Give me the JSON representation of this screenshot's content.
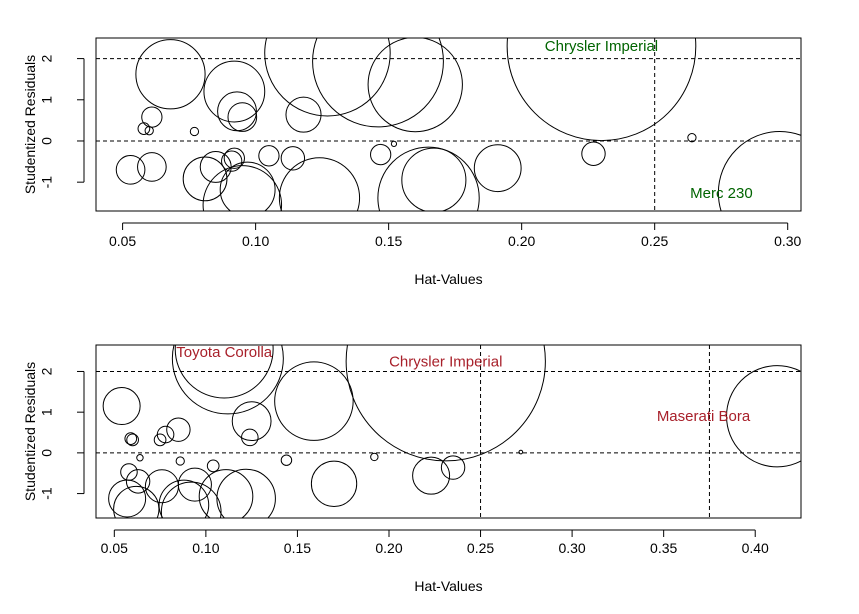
{
  "chart_data": [
    {
      "type": "scatter",
      "xlabel": "Hat-Values",
      "ylabel": "Studentized Residuals",
      "xlim": [
        0.04,
        0.305
      ],
      "ylim": [
        -1.7,
        2.5
      ],
      "xticks": [
        {
          "value": 0.05,
          "label": "0.05"
        },
        {
          "value": 0.1,
          "label": "0.10"
        },
        {
          "value": 0.15,
          "label": "0.15"
        },
        {
          "value": 0.2,
          "label": "0.20"
        },
        {
          "value": 0.25,
          "label": "0.25"
        },
        {
          "value": 0.3,
          "label": "0.30"
        }
      ],
      "yticks": [
        {
          "value": -1,
          "label": "-1"
        },
        {
          "value": 0,
          "label": "0"
        },
        {
          "value": 1,
          "label": "1"
        },
        {
          "value": 2,
          "label": "2"
        }
      ],
      "hlines": [
        -2,
        0,
        2
      ],
      "vlines": [
        0.25
      ],
      "bubble_note": "circle area proportional to Cook's distance",
      "points": [
        {
          "x": 0.053,
          "y": -0.7,
          "size": 0.006
        },
        {
          "x": 0.058,
          "y": 0.3,
          "size": 0.001
        },
        {
          "x": 0.06,
          "y": 0.25,
          "size": 0.0005
        },
        {
          "x": 0.061,
          "y": 0.58,
          "size": 0.003
        },
        {
          "x": 0.061,
          "y": -0.63,
          "size": 0.006
        },
        {
          "x": 0.068,
          "y": 1.62,
          "size": 0.035
        },
        {
          "x": 0.077,
          "y": 0.23,
          "size": 0.0005
        },
        {
          "x": 0.081,
          "y": -0.92,
          "size": 0.014
        },
        {
          "x": 0.085,
          "y": -0.63,
          "size": 0.007
        },
        {
          "x": 0.091,
          "y": -0.49,
          "size": 0.003
        },
        {
          "x": 0.092,
          "y": -0.42,
          "size": 0.003
        },
        {
          "x": 0.092,
          "y": 1.2,
          "size": 0.027
        },
        {
          "x": 0.093,
          "y": 0.72,
          "size": 0.011
        },
        {
          "x": 0.095,
          "y": 0.58,
          "size": 0.006
        },
        {
          "x": 0.095,
          "y": -1.55,
          "size": 0.045
        },
        {
          "x": 0.097,
          "y": -1.18,
          "size": 0.022
        },
        {
          "x": 0.105,
          "y": -0.36,
          "size": 0.003
        },
        {
          "x": 0.114,
          "y": -0.42,
          "size": 0.004
        },
        {
          "x": 0.118,
          "y": 0.64,
          "size": 0.009
        },
        {
          "x": 0.124,
          "y": -1.38,
          "size": 0.047
        },
        {
          "x": 0.127,
          "y": 2.13,
          "size": 0.115
        },
        {
          "x": 0.146,
          "y": 1.93,
          "size": 0.125
        },
        {
          "x": 0.147,
          "y": -0.33,
          "size": 0.003
        },
        {
          "x": 0.152,
          "y": -0.07,
          "size": 0.0002
        },
        {
          "x": 0.16,
          "y": 1.37,
          "size": 0.065
        },
        {
          "x": 0.165,
          "y": -1.38,
          "size": 0.075
        },
        {
          "x": 0.167,
          "y": -0.95,
          "size": 0.03
        },
        {
          "x": 0.191,
          "y": -0.66,
          "size": 0.016
        },
        {
          "x": 0.227,
          "y": -0.31,
          "size": 0.004
        },
        {
          "x": 0.23,
          "y": 2.3,
          "size": 0.26
        },
        {
          "x": 0.264,
          "y": 0.08,
          "size": 0.0005
        },
        {
          "x": 0.297,
          "y": -1.26,
          "size": 0.11
        }
      ],
      "annotations": [
        {
          "text": "Chrysler Imperial",
          "x": 0.23,
          "y": 2.3
        },
        {
          "text": "Merc 230",
          "x": 0.297,
          "y": -1.26
        }
      ],
      "label_color": "#006400"
    },
    {
      "type": "scatter",
      "xlabel": "Hat-Values",
      "ylabel": "Studentized Residuals",
      "xlim": [
        0.04,
        0.425
      ],
      "ylim": [
        -1.6,
        2.65
      ],
      "xticks": [
        {
          "value": 0.05,
          "label": "0.05"
        },
        {
          "value": 0.1,
          "label": "0.10"
        },
        {
          "value": 0.15,
          "label": "0.15"
        },
        {
          "value": 0.2,
          "label": "0.20"
        },
        {
          "value": 0.25,
          "label": "0.25"
        },
        {
          "value": 0.3,
          "label": "0.30"
        },
        {
          "value": 0.35,
          "label": "0.35"
        },
        {
          "value": 0.4,
          "label": "0.40"
        }
      ],
      "yticks": [
        {
          "value": -1,
          "label": "-1"
        },
        {
          "value": 0,
          "label": "0"
        },
        {
          "value": 1,
          "label": "1"
        },
        {
          "value": 2,
          "label": "2"
        }
      ],
      "hlines": [
        -2,
        0,
        2
      ],
      "vlines": [
        0.25,
        0.375
      ],
      "bubble_note": "circle area proportional to Cook's distance",
      "points": [
        {
          "x": 0.054,
          "y": 1.15,
          "size": 0.01
        },
        {
          "x": 0.057,
          "y": -1.12,
          "size": 0.01
        },
        {
          "x": 0.058,
          "y": -0.47,
          "size": 0.002
        },
        {
          "x": 0.059,
          "y": 0.35,
          "size": 0.001
        },
        {
          "x": 0.06,
          "y": 0.32,
          "size": 0.001
        },
        {
          "x": 0.062,
          "y": -1.38,
          "size": 0.015
        },
        {
          "x": 0.063,
          "y": -0.7,
          "size": 0.004
        },
        {
          "x": 0.064,
          "y": -0.12,
          "size": 0.0003
        },
        {
          "x": 0.076,
          "y": -0.82,
          "size": 0.008
        },
        {
          "x": 0.075,
          "y": 0.32,
          "size": 0.001
        },
        {
          "x": 0.078,
          "y": 0.45,
          "size": 0.002
        },
        {
          "x": 0.085,
          "y": 0.57,
          "size": 0.004
        },
        {
          "x": 0.086,
          "y": -0.2,
          "size": 0.0005
        },
        {
          "x": 0.088,
          "y": -1.28,
          "size": 0.018
        },
        {
          "x": 0.092,
          "y": -1.45,
          "size": 0.026
        },
        {
          "x": 0.094,
          "y": -0.78,
          "size": 0.008
        },
        {
          "x": 0.104,
          "y": -0.32,
          "size": 0.001
        },
        {
          "x": 0.11,
          "y": 2.55,
          "size": 0.07
        },
        {
          "x": 0.111,
          "y": -1.07,
          "size": 0.021
        },
        {
          "x": 0.112,
          "y": 2.32,
          "size": 0.09
        },
        {
          "x": 0.122,
          "y": -1.12,
          "size": 0.025
        },
        {
          "x": 0.124,
          "y": 0.38,
          "size": 0.002
        },
        {
          "x": 0.125,
          "y": 0.78,
          "size": 0.011
        },
        {
          "x": 0.144,
          "y": -0.18,
          "size": 0.0008
        },
        {
          "x": 0.159,
          "y": 1.27,
          "size": 0.045
        },
        {
          "x": 0.17,
          "y": -0.76,
          "size": 0.015
        },
        {
          "x": 0.192,
          "y": -0.1,
          "size": 0.0004
        },
        {
          "x": 0.223,
          "y": -0.56,
          "size": 0.01
        },
        {
          "x": 0.231,
          "y": 2.25,
          "size": 0.29
        },
        {
          "x": 0.235,
          "y": -0.36,
          "size": 0.004
        },
        {
          "x": 0.272,
          "y": 0.02,
          "size": 0.0001
        },
        {
          "x": 0.412,
          "y": 0.9,
          "size": 0.075
        }
      ],
      "annotations": [
        {
          "text": "Toyota Corolla",
          "x": 0.11,
          "y": 2.55
        },
        {
          "text": "Chrysler Imperial",
          "x": 0.231,
          "y": 2.25
        },
        {
          "text": "Maserati Bora",
          "x": 0.412,
          "y": 0.9
        }
      ],
      "label_color": "#a8202a"
    }
  ]
}
